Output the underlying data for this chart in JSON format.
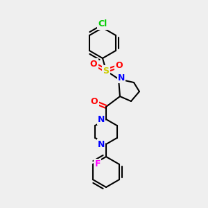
{
  "bg_color": "#efefef",
  "bond_color": "#000000",
  "bond_width": 1.5,
  "atom_colors": {
    "Cl": "#00cc00",
    "S": "#cccc00",
    "O": "#ff0000",
    "N": "#0000ff",
    "F": "#ff00ff",
    "C": "#000000"
  },
  "font_size": 9
}
